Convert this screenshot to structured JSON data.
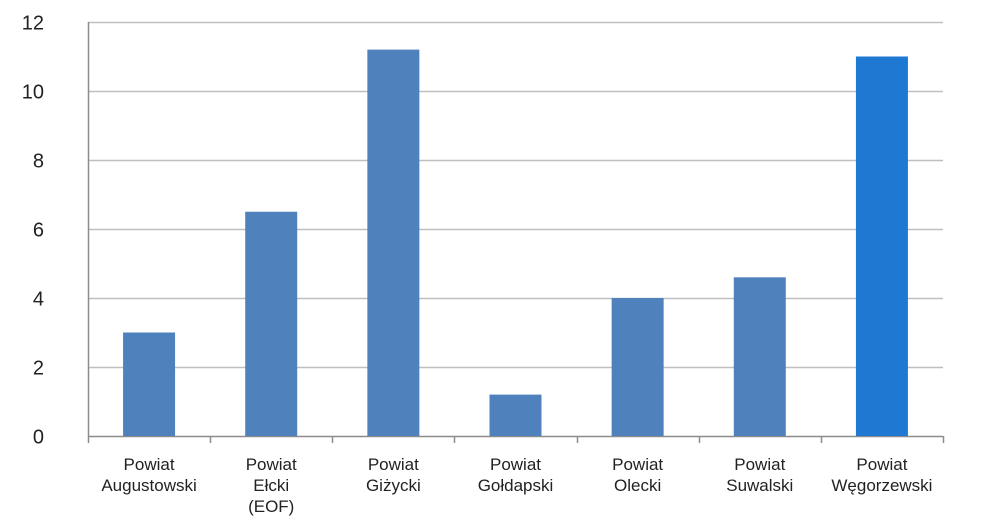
{
  "chart_data": {
    "type": "bar",
    "categories": [
      [
        "Powiat",
        "Augustowski"
      ],
      [
        "Powiat",
        "Ełcki",
        "(EOF)"
      ],
      [
        "Powiat",
        "Giżycki"
      ],
      [
        "Powiat",
        "Gołdapski"
      ],
      [
        "Powiat",
        "Olecki"
      ],
      [
        "Powiat",
        "Suwalski"
      ],
      [
        "Powiat",
        "Węgorzewski"
      ]
    ],
    "values": [
      3.0,
      6.5,
      11.2,
      1.2,
      4.0,
      4.6,
      11.0
    ],
    "title": "",
    "xlabel": "",
    "ylabel": "",
    "ylim": [
      0,
      12
    ],
    "yticks": [
      "0",
      "2",
      "4",
      "6",
      "8",
      "10",
      "12"
    ],
    "grid": true,
    "legend": "none",
    "colors": {
      "bars": [
        "#4F81BD",
        "#4F81BD",
        "#4F81BD",
        "#4F81BD",
        "#4F81BD",
        "#4F81BD",
        "#1F78D1"
      ],
      "grid": "#BFBFBF",
      "axis": "#8C8C8C"
    }
  }
}
